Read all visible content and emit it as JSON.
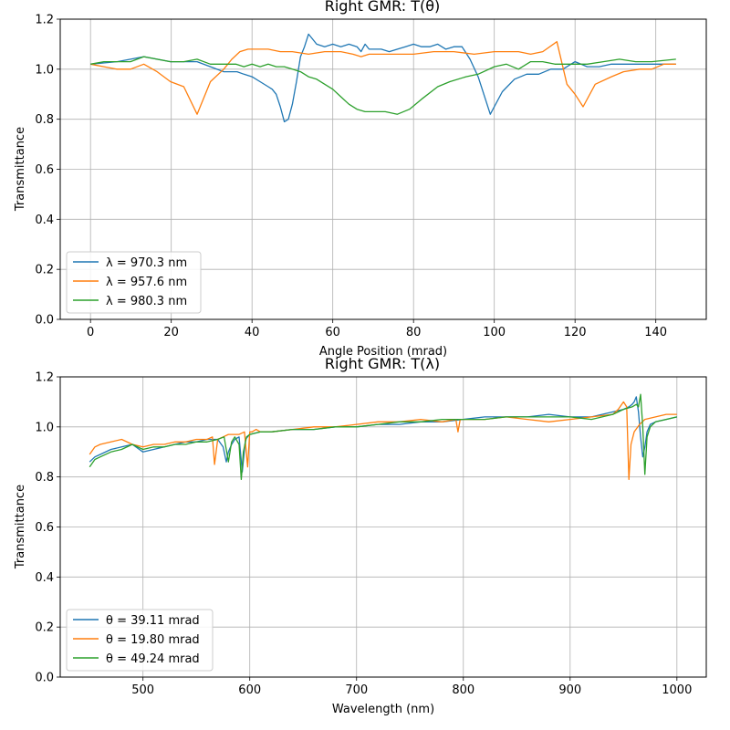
{
  "colors": {
    "c1": "#1f77b4",
    "c2": "#ff7f0e",
    "c3": "#2ca02c",
    "grid": "#b0b0b0"
  },
  "chart_data": [
    {
      "type": "line",
      "title": "Right GMR: T(θ)",
      "xlabel": "Angle Position (mrad)",
      "ylabel": "Transmittance",
      "xlim": [
        -7.5,
        152.5
      ],
      "ylim": [
        0,
        1.2
      ],
      "xticks": [
        0,
        20,
        40,
        60,
        80,
        100,
        120,
        140
      ],
      "xtick_labels": [
        "0",
        "20",
        "40",
        "60",
        "80",
        "100",
        "120",
        "140"
      ],
      "yticks": [
        0,
        0.2,
        0.4,
        0.6,
        0.8,
        1.0,
        1.2
      ],
      "ytick_labels": [
        "0.0",
        "0.2",
        "0.4",
        "0.6",
        "0.8",
        "1.0",
        "1.2"
      ],
      "grid": true,
      "legend": "lower left",
      "series": [
        {
          "name": "λ = 970.3 nm",
          "color": "#1f77b4",
          "x": [
            0,
            6.6,
            9.9,
            13.2,
            16.5,
            19.8,
            23.1,
            26.4,
            29.7,
            33,
            36.3,
            38,
            40,
            42,
            44,
            45,
            46,
            47,
            48,
            49,
            50,
            51,
            52,
            53,
            54,
            55,
            56,
            58,
            60,
            62,
            64,
            66,
            67,
            68,
            69,
            70,
            72,
            74,
            76,
            78,
            80,
            82,
            84,
            86,
            88,
            90,
            92,
            94,
            96,
            99,
            102,
            105,
            108,
            111,
            114,
            117,
            120,
            123,
            126,
            129,
            132,
            135,
            138,
            142,
            145
          ],
          "y": [
            1.02,
            1.03,
            1.04,
            1.05,
            1.04,
            1.03,
            1.03,
            1.03,
            1.01,
            0.99,
            0.99,
            0.98,
            0.97,
            0.95,
            0.93,
            0.92,
            0.9,
            0.85,
            0.79,
            0.8,
            0.86,
            0.95,
            1.05,
            1.09,
            1.14,
            1.12,
            1.1,
            1.09,
            1.1,
            1.09,
            1.1,
            1.09,
            1.07,
            1.1,
            1.08,
            1.08,
            1.08,
            1.07,
            1.08,
            1.09,
            1.1,
            1.09,
            1.09,
            1.1,
            1.08,
            1.09,
            1.09,
            1.04,
            0.97,
            0.82,
            0.91,
            0.96,
            0.98,
            0.98,
            1.0,
            1.0,
            1.03,
            1.01,
            1.01,
            1.02,
            1.02,
            1.02,
            1.02,
            1.02,
            1.02
          ]
        },
        {
          "name": "λ = 957.6 nm",
          "color": "#ff7f0e",
          "x": [
            0,
            3.3,
            6.6,
            9.9,
            13.2,
            16.5,
            19.8,
            23.1,
            26.4,
            29.7,
            33,
            35,
            37,
            39,
            41,
            44,
            47,
            50,
            54,
            58,
            62,
            65,
            67,
            69,
            71,
            75,
            80,
            85,
            90,
            95,
            100,
            103,
            106,
            109,
            112,
            115.5,
            118,
            120,
            122,
            125,
            129,
            132,
            136,
            139,
            142,
            145
          ],
          "y": [
            1.02,
            1.01,
            1.0,
            1.0,
            1.02,
            0.99,
            0.95,
            0.93,
            0.82,
            0.95,
            1.0,
            1.04,
            1.07,
            1.08,
            1.08,
            1.08,
            1.07,
            1.07,
            1.06,
            1.07,
            1.07,
            1.06,
            1.05,
            1.06,
            1.06,
            1.06,
            1.06,
            1.07,
            1.07,
            1.06,
            1.07,
            1.07,
            1.07,
            1.06,
            1.07,
            1.11,
            0.94,
            0.9,
            0.85,
            0.94,
            0.97,
            0.99,
            1.0,
            1.0,
            1.02,
            1.02
          ]
        },
        {
          "name": "λ = 980.3 nm",
          "color": "#2ca02c",
          "x": [
            0,
            3.3,
            6.6,
            9.9,
            13.2,
            16.5,
            19.8,
            23.1,
            26.4,
            29.7,
            33,
            36,
            38,
            40,
            42,
            44,
            46,
            48,
            50,
            52,
            54,
            56,
            58,
            60,
            62,
            64,
            66,
            68,
            70,
            73,
            76,
            79,
            82,
            86,
            89,
            93,
            96,
            100,
            103,
            106,
            109,
            112,
            115,
            119,
            123,
            127,
            131,
            135,
            139,
            145
          ],
          "y": [
            1.02,
            1.03,
            1.03,
            1.03,
            1.05,
            1.04,
            1.03,
            1.03,
            1.04,
            1.02,
            1.02,
            1.02,
            1.01,
            1.02,
            1.01,
            1.02,
            1.01,
            1.01,
            1.0,
            0.99,
            0.97,
            0.96,
            0.94,
            0.92,
            0.89,
            0.86,
            0.84,
            0.83,
            0.83,
            0.83,
            0.82,
            0.84,
            0.88,
            0.93,
            0.95,
            0.97,
            0.98,
            1.01,
            1.02,
            1.0,
            1.03,
            1.03,
            1.02,
            1.02,
            1.02,
            1.03,
            1.04,
            1.03,
            1.03,
            1.04
          ]
        }
      ]
    },
    {
      "type": "line",
      "title": "Right GMR: T(λ)",
      "xlabel": "Wavelength (nm)",
      "ylabel": "Transmittance",
      "xlim": [
        422.5,
        1027.5
      ],
      "ylim": [
        0,
        1.2
      ],
      "xticks": [
        500,
        600,
        700,
        800,
        900,
        1000
      ],
      "xtick_labels": [
        "500",
        "600",
        "700",
        "800",
        "900",
        "1000"
      ],
      "yticks": [
        0,
        0.2,
        0.4,
        0.6,
        0.8,
        1.0,
        1.2
      ],
      "ytick_labels": [
        "0.0",
        "0.2",
        "0.4",
        "0.6",
        "0.8",
        "1.0",
        "1.2"
      ],
      "grid": true,
      "legend": "lower left",
      "series": [
        {
          "name": "θ = 39.11 mrad",
          "color": "#1f77b4",
          "x": [
            450,
            455,
            460,
            470,
            480,
            490,
            500,
            510,
            520,
            530,
            540,
            550,
            560,
            570,
            575,
            578,
            580,
            583,
            586,
            590,
            593,
            596,
            600,
            610,
            620,
            640,
            660,
            680,
            700,
            720,
            740,
            760,
            780,
            800,
            820,
            840,
            860,
            880,
            900,
            920,
            940,
            950,
            955,
            958,
            960,
            962,
            964,
            966,
            968,
            970,
            972,
            975,
            980,
            990,
            1000
          ],
          "y": [
            0.86,
            0.88,
            0.89,
            0.91,
            0.92,
            0.93,
            0.9,
            0.91,
            0.92,
            0.93,
            0.94,
            0.94,
            0.95,
            0.95,
            0.92,
            0.86,
            0.9,
            0.93,
            0.95,
            0.96,
            0.82,
            0.95,
            0.97,
            0.98,
            0.98,
            0.99,
            0.99,
            1.0,
            1.0,
            1.01,
            1.01,
            1.02,
            1.02,
            1.03,
            1.04,
            1.04,
            1.04,
            1.05,
            1.04,
            1.04,
            1.06,
            1.07,
            1.08,
            1.09,
            1.1,
            1.12,
            1.06,
            0.96,
            0.88,
            0.92,
            0.98,
            1.01,
            1.02,
            1.03,
            1.04
          ]
        },
        {
          "name": "θ = 19.80 mrad",
          "color": "#ff7f0e",
          "x": [
            450,
            455,
            460,
            470,
            480,
            490,
            500,
            510,
            520,
            530,
            540,
            550,
            560,
            565,
            567,
            570,
            575,
            580,
            590,
            595,
            598,
            600,
            602,
            606,
            610,
            620,
            640,
            660,
            680,
            700,
            720,
            740,
            760,
            780,
            793,
            795,
            797,
            800,
            820,
            840,
            860,
            880,
            900,
            920,
            940,
            945,
            950,
            953,
            955,
            957,
            960,
            965,
            970,
            980,
            990,
            1000
          ],
          "y": [
            0.89,
            0.92,
            0.93,
            0.94,
            0.95,
            0.93,
            0.92,
            0.93,
            0.93,
            0.94,
            0.94,
            0.95,
            0.95,
            0.96,
            0.85,
            0.95,
            0.96,
            0.97,
            0.97,
            0.98,
            0.84,
            0.98,
            0.98,
            0.99,
            0.98,
            0.98,
            0.99,
            1.0,
            1.0,
            1.01,
            1.02,
            1.02,
            1.03,
            1.02,
            1.03,
            0.98,
            1.03,
            1.03,
            1.03,
            1.04,
            1.03,
            1.02,
            1.03,
            1.04,
            1.05,
            1.07,
            1.1,
            1.08,
            0.79,
            0.93,
            0.98,
            1.01,
            1.03,
            1.04,
            1.05,
            1.05
          ]
        },
        {
          "name": "θ = 49.24 mrad",
          "color": "#2ca02c",
          "x": [
            450,
            455,
            460,
            470,
            480,
            490,
            500,
            510,
            520,
            530,
            540,
            550,
            560,
            570,
            576,
            580,
            583,
            586,
            590,
            592,
            594,
            597,
            600,
            610,
            620,
            640,
            660,
            680,
            700,
            720,
            740,
            760,
            780,
            800,
            820,
            840,
            860,
            880,
            900,
            920,
            940,
            950,
            958,
            962,
            964,
            966,
            968,
            970,
            972,
            975,
            980,
            990,
            1000
          ],
          "y": [
            0.84,
            0.87,
            0.88,
            0.9,
            0.91,
            0.93,
            0.91,
            0.92,
            0.92,
            0.93,
            0.93,
            0.94,
            0.94,
            0.95,
            0.96,
            0.86,
            0.94,
            0.96,
            0.93,
            0.79,
            0.9,
            0.96,
            0.97,
            0.98,
            0.98,
            0.99,
            0.99,
            1.0,
            1.0,
            1.01,
            1.02,
            1.02,
            1.03,
            1.03,
            1.03,
            1.04,
            1.04,
            1.04,
            1.04,
            1.03,
            1.05,
            1.07,
            1.08,
            1.09,
            1.08,
            1.13,
            1.0,
            0.81,
            0.96,
            1.0,
            1.02,
            1.03,
            1.04
          ]
        }
      ]
    }
  ]
}
